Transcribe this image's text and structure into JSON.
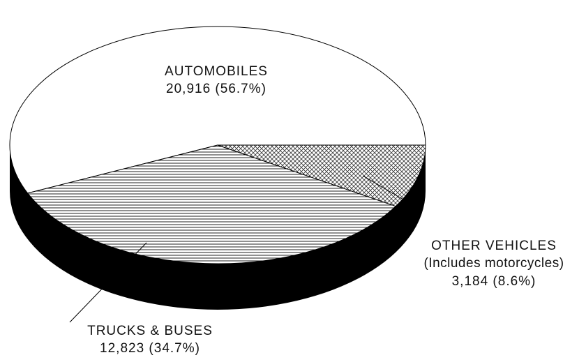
{
  "chart_data": {
    "type": "pie",
    "categories": [
      "AUTOMOBILES",
      "TRUCKS & BUSES",
      "OTHER VEHICLES"
    ],
    "values": [
      20916,
      12823,
      3184
    ],
    "value_labels": [
      "20,916 (56.7%)",
      "12,823 (34.7%)",
      "3,184 (8.6%)"
    ],
    "annotation": "(Includes motorcycles)"
  }
}
